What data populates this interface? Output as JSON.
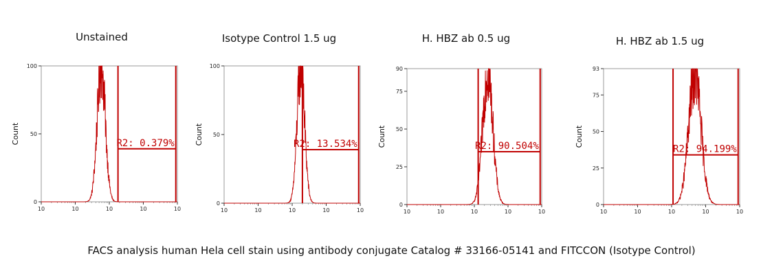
{
  "caption": "FACS analysis human Hela cell stain using antibody conjugate Catalog # 33166-05141 and FITCCON (Isotype Control)",
  "colors": {
    "trace": "#c00000",
    "axis": "#333333",
    "text": "#111111"
  },
  "chart_data": [
    {
      "type": "histogram",
      "title": "Unstained",
      "ylabel": "Count",
      "xscale": "log",
      "xlim": [
        1,
        10000
      ],
      "ylim": [
        0,
        100
      ],
      "yticks": [
        0,
        50,
        100
      ],
      "x_tick_labels": [
        "10",
        "10",
        "10",
        "10",
        "10"
      ],
      "peak_x": 58,
      "peak_count": 100,
      "spread_decades": 0.12,
      "gate": {
        "label": "R2: 0.379%",
        "start": 180,
        "end": 9000,
        "level": 39
      }
    },
    {
      "type": "histogram",
      "title": "Isotype Control 1.5 ug",
      "ylabel": "Count",
      "xscale": "log",
      "xlim": [
        1,
        10000
      ],
      "ylim": [
        0,
        100
      ],
      "yticks": [
        0,
        50,
        100
      ],
      "x_tick_labels": [
        "10",
        "10",
        "10",
        "10",
        "10"
      ],
      "peak_x": 180,
      "peak_count": 100,
      "spread_decades": 0.11,
      "gate": {
        "label": "R2: 13.534%",
        "start": 200,
        "end": 9000,
        "level": 39
      }
    },
    {
      "type": "histogram",
      "title": "H. HBZ ab 0.5 ug",
      "ylabel": "Count",
      "xscale": "log",
      "xlim": [
        1,
        10000
      ],
      "ylim": [
        0,
        90
      ],
      "yticks": [
        0,
        25,
        50,
        75,
        90
      ],
      "x_tick_labels": [
        "10",
        "10",
        "10",
        "10",
        "10"
      ],
      "peak_x": 250,
      "peak_count": 88,
      "spread_decades": 0.15,
      "gate": {
        "label": "R2: 90.504%",
        "start": 130,
        "end": 9000,
        "level": 35
      }
    },
    {
      "type": "histogram",
      "title": "H. HBZ ab 1.5 ug",
      "ylabel": "Count",
      "xscale": "log",
      "xlim": [
        1,
        10000
      ],
      "ylim": [
        0,
        93
      ],
      "yticks": [
        0,
        25,
        50,
        75,
        93
      ],
      "x_tick_labels": [
        "10",
        "10",
        "10",
        "10",
        "10"
      ],
      "peak_x": 480,
      "peak_count": 90,
      "spread_decades": 0.18,
      "gate": {
        "label": "R2: 94.199%",
        "start": 110,
        "end": 9000,
        "level": 34
      }
    }
  ]
}
